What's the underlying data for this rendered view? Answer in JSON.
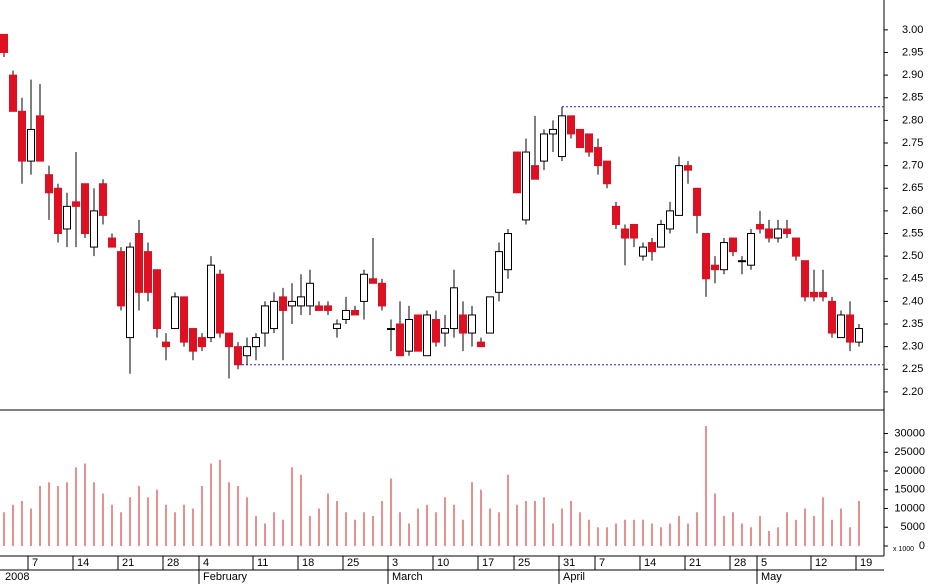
{
  "chart_data": {
    "type": "candlestick",
    "categories": [
      null,
      null,
      null,
      "7",
      null,
      null,
      null,
      null,
      "14",
      null,
      null,
      null,
      null,
      "21",
      null,
      null,
      null,
      null,
      "28",
      null,
      null,
      null,
      "4",
      null,
      null,
      null,
      null,
      null,
      "11",
      null,
      null,
      null,
      null,
      "18",
      null,
      null,
      null,
      null,
      "25",
      null,
      null,
      null,
      null,
      "3",
      null,
      null,
      null,
      null,
      "10",
      null,
      null,
      null,
      null,
      "17",
      null,
      null,
      null,
      "25",
      null,
      null,
      null,
      null,
      "31",
      null,
      null,
      null,
      "7",
      null,
      null,
      null,
      null,
      "14",
      null,
      null,
      null,
      null,
      "21",
      null,
      null,
      null,
      null,
      "28",
      null,
      null,
      "5",
      null,
      null,
      null,
      null,
      null,
      "12",
      null,
      null,
      null,
      null,
      "19"
    ],
    "month_labels": [
      {
        "label": "2008",
        "index": 0
      },
      {
        "label": "February",
        "index": 22
      },
      {
        "label": "March",
        "index": 43
      },
      {
        "label": "April",
        "index": 62
      },
      {
        "label": "May",
        "index": 84
      }
    ],
    "open": [
      2.99,
      2.9,
      2.82,
      2.71,
      2.81,
      2.68,
      2.65,
      2.56,
      2.62,
      2.66,
      2.52,
      2.66,
      2.54,
      2.51,
      2.32,
      2.55,
      2.51,
      2.47,
      2.31,
      2.34,
      2.41,
      2.34,
      2.32,
      2.32,
      2.46,
      2.33,
      2.3,
      2.28,
      2.3,
      2.33,
      2.34,
      2.41,
      2.39,
      2.39,
      2.39,
      2.39,
      2.39,
      2.34,
      2.36,
      2.38,
      2.4,
      2.45,
      2.44,
      2.34,
      2.35,
      2.29,
      2.37,
      2.28,
      2.36,
      2.33,
      2.34,
      2.37,
      2.33,
      2.31,
      2.33,
      2.42,
      2.47,
      2.73,
      2.58,
      2.7,
      2.71,
      2.77,
      2.72,
      2.81,
      2.78,
      2.77,
      2.74,
      2.71,
      2.61,
      2.56,
      2.57,
      2.5,
      2.53,
      2.52,
      2.56,
      2.59,
      2.7,
      2.65,
      2.55,
      2.48,
      2.47,
      2.54,
      2.49,
      2.48,
      2.57,
      2.56,
      2.54,
      2.56,
      2.54,
      2.49,
      2.42,
      2.42,
      2.4,
      2.32,
      2.37,
      2.31
    ],
    "high": [
      2.99,
      2.91,
      2.85,
      2.89,
      2.88,
      2.7,
      2.66,
      2.64,
      2.73,
      2.66,
      2.65,
      2.67,
      2.55,
      2.52,
      2.53,
      2.58,
      2.53,
      2.47,
      2.33,
      2.42,
      2.41,
      2.34,
      2.33,
      2.5,
      2.47,
      2.33,
      2.31,
      2.32,
      2.33,
      2.4,
      2.42,
      2.43,
      2.44,
      2.46,
      2.47,
      2.4,
      2.4,
      2.36,
      2.41,
      2.39,
      2.47,
      2.54,
      2.45,
      2.36,
      2.4,
      2.39,
      2.37,
      2.38,
      2.38,
      2.37,
      2.47,
      2.4,
      2.39,
      2.32,
      2.41,
      2.53,
      2.56,
      2.73,
      2.76,
      2.81,
      2.78,
      2.8,
      2.83,
      2.81,
      2.78,
      2.77,
      2.76,
      2.71,
      2.62,
      2.57,
      2.57,
      2.53,
      2.54,
      2.58,
      2.62,
      2.72,
      2.71,
      2.65,
      2.55,
      2.5,
      2.54,
      2.54,
      2.5,
      2.56,
      2.6,
      2.58,
      2.58,
      2.58,
      2.54,
      2.49,
      2.47,
      2.47,
      2.41,
      2.38,
      2.4,
      2.35
    ],
    "low": [
      2.94,
      2.82,
      2.66,
      2.68,
      2.71,
      2.58,
      2.53,
      2.52,
      2.52,
      2.54,
      2.5,
      2.57,
      2.52,
      2.38,
      2.24,
      2.38,
      2.4,
      2.32,
      2.27,
      2.34,
      2.3,
      2.27,
      2.29,
      2.31,
      2.32,
      2.23,
      2.25,
      2.26,
      2.27,
      2.3,
      2.33,
      2.27,
      2.35,
      2.37,
      2.37,
      2.38,
      2.37,
      2.32,
      2.35,
      2.37,
      2.36,
      2.44,
      2.38,
      2.29,
      2.28,
      2.28,
      2.29,
      2.28,
      2.3,
      2.3,
      2.32,
      2.29,
      2.3,
      2.3,
      2.33,
      2.4,
      2.45,
      2.64,
      2.57,
      2.67,
      2.69,
      2.73,
      2.71,
      2.76,
      2.74,
      2.72,
      2.68,
      2.65,
      2.56,
      2.48,
      2.52,
      2.49,
      2.49,
      2.52,
      2.55,
      2.59,
      2.66,
      2.55,
      2.41,
      2.44,
      2.46,
      2.5,
      2.46,
      2.47,
      2.55,
      2.53,
      2.53,
      2.54,
      2.49,
      2.4,
      2.4,
      2.4,
      2.32,
      2.32,
      2.29,
      2.3
    ],
    "close": [
      2.95,
      2.82,
      2.71,
      2.78,
      2.71,
      2.64,
      2.55,
      2.61,
      2.61,
      2.55,
      2.6,
      2.59,
      2.52,
      2.39,
      2.52,
      2.42,
      2.42,
      2.34,
      2.3,
      2.41,
      2.31,
      2.29,
      2.3,
      2.48,
      2.33,
      2.3,
      2.26,
      2.3,
      2.32,
      2.39,
      2.4,
      2.38,
      2.4,
      2.41,
      2.44,
      2.38,
      2.38,
      2.35,
      2.38,
      2.37,
      2.46,
      2.44,
      2.39,
      2.34,
      2.28,
      2.36,
      2.29,
      2.37,
      2.31,
      2.34,
      2.43,
      2.33,
      2.37,
      2.3,
      2.41,
      2.51,
      2.55,
      2.64,
      2.73,
      2.67,
      2.77,
      2.78,
      2.81,
      2.77,
      2.74,
      2.73,
      2.7,
      2.66,
      2.57,
      2.54,
      2.54,
      2.52,
      2.51,
      2.57,
      2.6,
      2.7,
      2.69,
      2.59,
      2.45,
      2.47,
      2.53,
      2.51,
      2.49,
      2.55,
      2.56,
      2.54,
      2.56,
      2.55,
      2.5,
      2.41,
      2.41,
      2.41,
      2.33,
      2.37,
      2.31,
      2.34
    ],
    "volume": [
      9000,
      11000,
      12000,
      10000,
      16000,
      17000,
      16000,
      17000,
      21000,
      22000,
      17000,
      14000,
      11000,
      9000,
      13000,
      16000,
      13000,
      15000,
      11000,
      9000,
      11000,
      10000,
      16000,
      22000,
      23000,
      17000,
      16000,
      13000,
      8000,
      6000,
      9000,
      7000,
      21000,
      19000,
      8000,
      10000,
      14000,
      12000,
      9000,
      7000,
      9000,
      8000,
      12000,
      18000,
      9000,
      6000,
      10000,
      11000,
      9000,
      13000,
      11000,
      7000,
      17000,
      15000,
      10000,
      9000,
      19000,
      11000,
      12000,
      12000,
      13000,
      6000,
      10000,
      12000,
      9000,
      7000,
      5000,
      5000,
      6000,
      7000,
      7000,
      7000,
      6000,
      5000,
      6000,
      8000,
      6000,
      9000,
      32000,
      14000,
      8000,
      9000,
      6000,
      5000,
      8000,
      4000,
      5000,
      9000,
      7000,
      10000,
      8000,
      13000,
      7000,
      10000,
      5000,
      12000
    ],
    "ylim": [
      2.16,
      3.066
    ],
    "yticks": [
      {
        "value": 2.2,
        "label": "2.20"
      },
      {
        "value": 2.25,
        "label": "2.25"
      },
      {
        "value": 2.3,
        "label": "2.30"
      },
      {
        "value": 2.35,
        "label": "2.35"
      },
      {
        "value": 2.4,
        "label": "2.40"
      },
      {
        "value": 2.45,
        "label": "2.45"
      },
      {
        "value": 2.5,
        "label": "2.50"
      },
      {
        "value": 2.55,
        "label": "2.55"
      },
      {
        "value": 2.6,
        "label": "2.60"
      },
      {
        "value": 2.65,
        "label": "2.65"
      },
      {
        "value": 2.7,
        "label": "2.70"
      },
      {
        "value": 2.75,
        "label": "2.75"
      },
      {
        "value": 2.8,
        "label": "2.80"
      },
      {
        "value": 2.85,
        "label": "2.85"
      },
      {
        "value": 2.9,
        "label": "2.90"
      },
      {
        "value": 2.95,
        "label": "2.95"
      },
      {
        "value": 3,
        "label": "3.00"
      }
    ],
    "y2lim": [
      0,
      36000
    ],
    "y2ticks": [
      0,
      5000,
      10000,
      15000,
      20000,
      25000,
      30000
    ],
    "volume_unit_label": "x 1000",
    "hlines": [
      {
        "value": 2.83,
        "from": 62
      },
      {
        "value": 2.26,
        "from": 26
      }
    ],
    "up_color": "#ffffff",
    "down_color": "#dd1122",
    "volume_color": "#cc2222",
    "hline_color": "#2222cc"
  }
}
